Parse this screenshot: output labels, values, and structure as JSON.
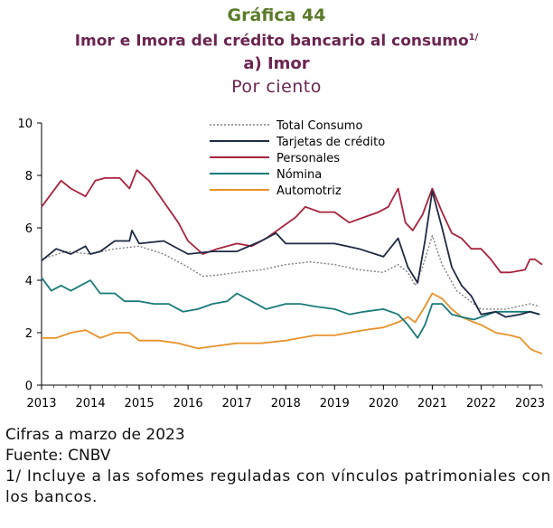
{
  "header": {
    "graph_no": "Gráfica 44",
    "title": "Imor e Imora del crédito bancario al consumo",
    "title_note": "1/",
    "panel": "a) Imor",
    "unit": "Por ciento"
  },
  "footer": {
    "date_note": "Cifras a marzo de 2023",
    "source": "Fuente: CNBV",
    "footnote": "1/ Incluye a las sofomes reguladas con vínculos patrimoniales con los bancos."
  },
  "chart_data": {
    "type": "line",
    "x_ticks": [
      "2013",
      "2014",
      "2015",
      "2016",
      "2017",
      "2018",
      "2019",
      "2020",
      "2021",
      "2022",
      "2023"
    ],
    "ylim": [
      0,
      10
    ],
    "y_ticks": [
      0,
      2,
      4,
      6,
      8,
      10
    ],
    "xlim": [
      2013.0,
      2023.25
    ],
    "grid": false,
    "legend": "top-center",
    "series": [
      {
        "name": "Total Consumo",
        "color": "#7f7f7f",
        "dash": "2,2",
        "points": [
          [
            2013.0,
            4.8
          ],
          [
            2013.5,
            5.1
          ],
          [
            2014.0,
            5.0
          ],
          [
            2014.5,
            5.2
          ],
          [
            2015.0,
            5.3
          ],
          [
            2015.5,
            5.0
          ],
          [
            2016.0,
            4.5
          ],
          [
            2016.3,
            4.15
          ],
          [
            2016.6,
            4.2
          ],
          [
            2017.0,
            4.3
          ],
          [
            2017.5,
            4.4
          ],
          [
            2018.0,
            4.6
          ],
          [
            2018.5,
            4.7
          ],
          [
            2019.0,
            4.6
          ],
          [
            2019.5,
            4.4
          ],
          [
            2020.0,
            4.3
          ],
          [
            2020.3,
            4.6
          ],
          [
            2020.5,
            4.3
          ],
          [
            2020.65,
            3.8
          ],
          [
            2020.8,
            4.5
          ],
          [
            2021.0,
            5.7
          ],
          [
            2021.2,
            4.6
          ],
          [
            2021.5,
            3.6
          ],
          [
            2021.85,
            3.1
          ],
          [
            2022.0,
            2.9
          ],
          [
            2022.5,
            2.9
          ],
          [
            2023.0,
            3.1
          ],
          [
            2023.2,
            3.0
          ]
        ]
      },
      {
        "name": "Tarjetas de crédito",
        "color": "#1f2a44",
        "dash": "",
        "points": [
          [
            2013.0,
            4.75
          ],
          [
            2013.3,
            5.2
          ],
          [
            2013.6,
            5.0
          ],
          [
            2013.9,
            5.3
          ],
          [
            2014.0,
            5.0
          ],
          [
            2014.2,
            5.1
          ],
          [
            2014.5,
            5.5
          ],
          [
            2014.8,
            5.5
          ],
          [
            2014.85,
            5.9
          ],
          [
            2015.0,
            5.4
          ],
          [
            2015.5,
            5.5
          ],
          [
            2016.0,
            5.0
          ],
          [
            2016.5,
            5.1
          ],
          [
            2017.0,
            5.1
          ],
          [
            2017.5,
            5.5
          ],
          [
            2017.8,
            5.8
          ],
          [
            2018.0,
            5.4
          ],
          [
            2018.5,
            5.4
          ],
          [
            2019.0,
            5.4
          ],
          [
            2019.5,
            5.2
          ],
          [
            2020.0,
            4.9
          ],
          [
            2020.3,
            5.6
          ],
          [
            2020.5,
            4.5
          ],
          [
            2020.7,
            3.9
          ],
          [
            2020.85,
            5.5
          ],
          [
            2021.0,
            7.4
          ],
          [
            2021.2,
            6.0
          ],
          [
            2021.4,
            4.5
          ],
          [
            2021.6,
            3.8
          ],
          [
            2021.8,
            3.4
          ],
          [
            2022.0,
            2.7
          ],
          [
            2022.3,
            2.8
          ],
          [
            2022.5,
            2.6
          ],
          [
            2022.8,
            2.7
          ],
          [
            2023.0,
            2.8
          ],
          [
            2023.2,
            2.7
          ]
        ]
      },
      {
        "name": "Personales",
        "color": "#a8233c",
        "dash": "",
        "points": [
          [
            2013.0,
            6.8
          ],
          [
            2013.2,
            7.3
          ],
          [
            2013.4,
            7.8
          ],
          [
            2013.6,
            7.5
          ],
          [
            2013.9,
            7.2
          ],
          [
            2014.1,
            7.8
          ],
          [
            2014.3,
            7.9
          ],
          [
            2014.6,
            7.9
          ],
          [
            2014.8,
            7.5
          ],
          [
            2014.95,
            8.2
          ],
          [
            2015.2,
            7.8
          ],
          [
            2015.5,
            7.0
          ],
          [
            2015.8,
            6.2
          ],
          [
            2016.0,
            5.5
          ],
          [
            2016.3,
            5.0
          ],
          [
            2016.6,
            5.2
          ],
          [
            2017.0,
            5.4
          ],
          [
            2017.3,
            5.3
          ],
          [
            2017.6,
            5.6
          ],
          [
            2017.9,
            6.0
          ],
          [
            2018.2,
            6.4
          ],
          [
            2018.4,
            6.8
          ],
          [
            2018.7,
            6.6
          ],
          [
            2019.0,
            6.6
          ],
          [
            2019.3,
            6.2
          ],
          [
            2019.6,
            6.4
          ],
          [
            2019.9,
            6.6
          ],
          [
            2020.1,
            6.8
          ],
          [
            2020.3,
            7.5
          ],
          [
            2020.45,
            6.2
          ],
          [
            2020.6,
            5.9
          ],
          [
            2020.8,
            6.5
          ],
          [
            2021.0,
            7.5
          ],
          [
            2021.2,
            6.6
          ],
          [
            2021.4,
            5.8
          ],
          [
            2021.6,
            5.6
          ],
          [
            2021.8,
            5.2
          ],
          [
            2022.0,
            5.2
          ],
          [
            2022.2,
            4.8
          ],
          [
            2022.4,
            4.3
          ],
          [
            2022.6,
            4.3
          ],
          [
            2022.9,
            4.4
          ],
          [
            2023.0,
            4.8
          ],
          [
            2023.1,
            4.8
          ],
          [
            2023.25,
            4.6
          ]
        ]
      },
      {
        "name": "Nómina",
        "color": "#1a7a7a",
        "dash": "",
        "points": [
          [
            2013.0,
            4.1
          ],
          [
            2013.2,
            3.6
          ],
          [
            2013.4,
            3.8
          ],
          [
            2013.6,
            3.6
          ],
          [
            2013.8,
            3.8
          ],
          [
            2014.0,
            4.0
          ],
          [
            2014.2,
            3.5
          ],
          [
            2014.5,
            3.5
          ],
          [
            2014.7,
            3.2
          ],
          [
            2015.0,
            3.2
          ],
          [
            2015.3,
            3.1
          ],
          [
            2015.6,
            3.1
          ],
          [
            2015.9,
            2.8
          ],
          [
            2016.2,
            2.9
          ],
          [
            2016.5,
            3.1
          ],
          [
            2016.8,
            3.2
          ],
          [
            2017.0,
            3.5
          ],
          [
            2017.3,
            3.2
          ],
          [
            2017.6,
            2.9
          ],
          [
            2018.0,
            3.1
          ],
          [
            2018.3,
            3.1
          ],
          [
            2018.6,
            3.0
          ],
          [
            2019.0,
            2.9
          ],
          [
            2019.3,
            2.7
          ],
          [
            2019.6,
            2.8
          ],
          [
            2020.0,
            2.9
          ],
          [
            2020.3,
            2.7
          ],
          [
            2020.5,
            2.3
          ],
          [
            2020.7,
            1.8
          ],
          [
            2020.85,
            2.3
          ],
          [
            2021.0,
            3.1
          ],
          [
            2021.2,
            3.1
          ],
          [
            2021.4,
            2.7
          ],
          [
            2021.6,
            2.6
          ],
          [
            2021.85,
            2.5
          ],
          [
            2022.0,
            2.6
          ],
          [
            2022.3,
            2.8
          ],
          [
            2022.6,
            2.8
          ],
          [
            2023.0,
            2.8
          ],
          [
            2023.2,
            2.7
          ]
        ]
      },
      {
        "name": "Automotriz",
        "color": "#e8922a",
        "dash": "",
        "points": [
          [
            2013.0,
            1.8
          ],
          [
            2013.3,
            1.8
          ],
          [
            2013.6,
            2.0
          ],
          [
            2013.9,
            2.1
          ],
          [
            2014.2,
            1.8
          ],
          [
            2014.5,
            2.0
          ],
          [
            2014.8,
            2.0
          ],
          [
            2015.0,
            1.7
          ],
          [
            2015.4,
            1.7
          ],
          [
            2015.8,
            1.6
          ],
          [
            2016.2,
            1.4
          ],
          [
            2016.6,
            1.5
          ],
          [
            2017.0,
            1.6
          ],
          [
            2017.5,
            1.6
          ],
          [
            2018.0,
            1.7
          ],
          [
            2018.3,
            1.8
          ],
          [
            2018.6,
            1.9
          ],
          [
            2019.0,
            1.9
          ],
          [
            2019.3,
            2.0
          ],
          [
            2019.6,
            2.1
          ],
          [
            2020.0,
            2.2
          ],
          [
            2020.3,
            2.4
          ],
          [
            2020.5,
            2.6
          ],
          [
            2020.65,
            2.4
          ],
          [
            2020.85,
            3.0
          ],
          [
            2021.0,
            3.5
          ],
          [
            2021.2,
            3.3
          ],
          [
            2021.4,
            2.9
          ],
          [
            2021.6,
            2.6
          ],
          [
            2021.85,
            2.4
          ],
          [
            2022.0,
            2.3
          ],
          [
            2022.3,
            2.0
          ],
          [
            2022.6,
            1.9
          ],
          [
            2022.8,
            1.8
          ],
          [
            2023.0,
            1.4
          ],
          [
            2023.1,
            1.3
          ],
          [
            2023.25,
            1.2
          ]
        ]
      }
    ]
  }
}
